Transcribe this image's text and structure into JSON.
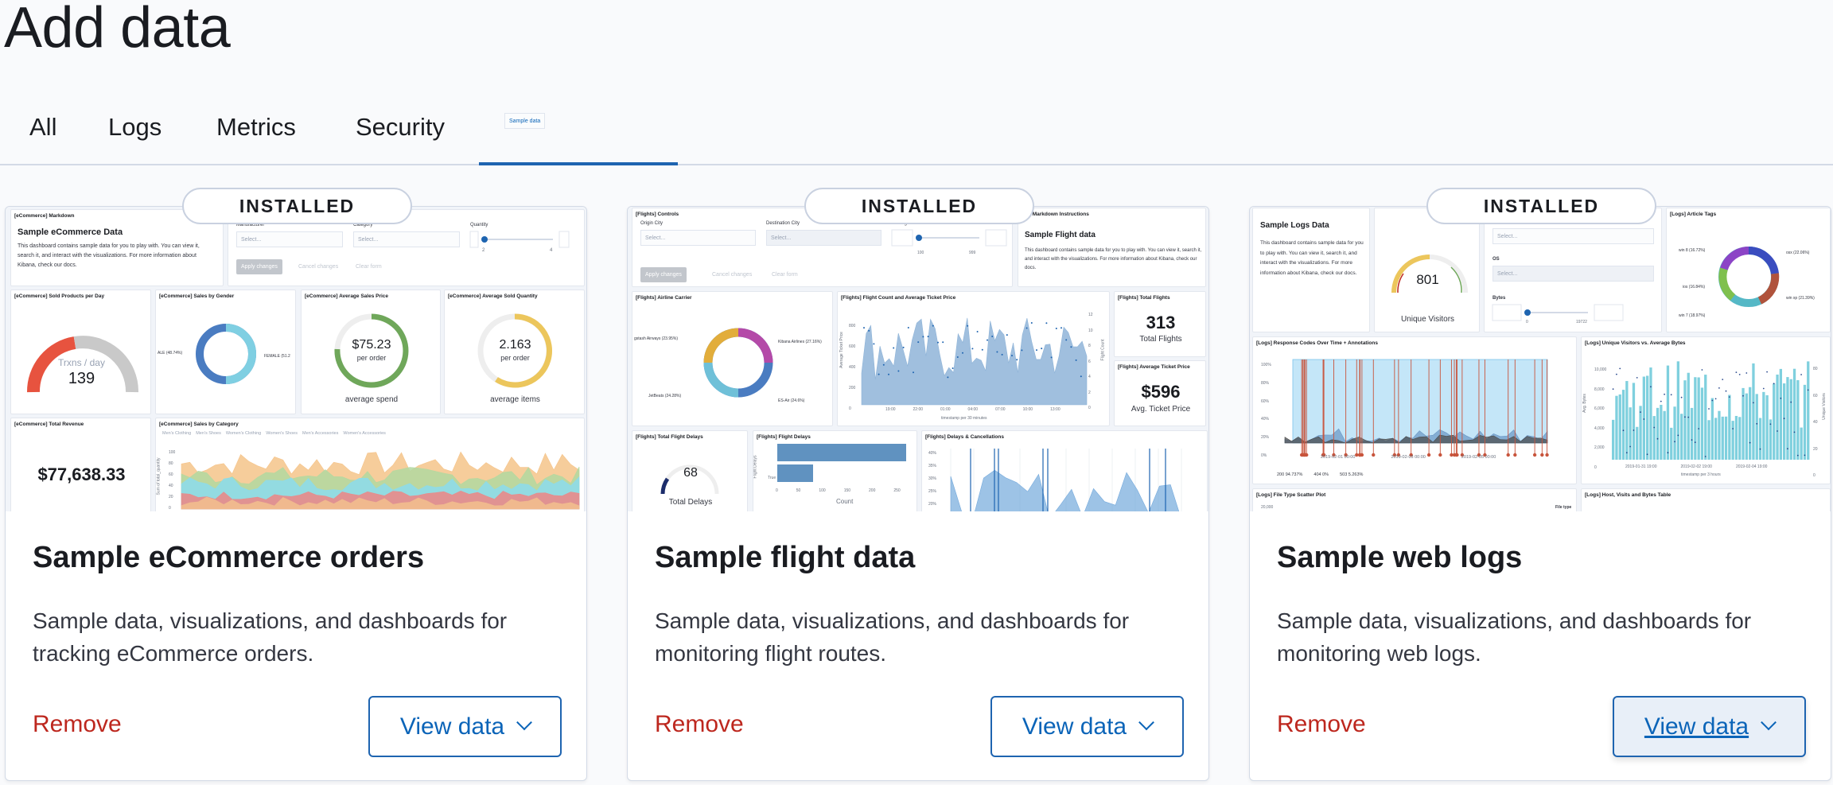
{
  "page": {
    "title": "Add data"
  },
  "tabs": [
    {
      "label": "All"
    },
    {
      "label": "Logs"
    },
    {
      "label": "Metrics"
    },
    {
      "label": "Security"
    },
    {
      "label": "Sample data",
      "selected": true
    }
  ],
  "colors": {
    "accent": "#0b64b8",
    "danger": "#bd271e",
    "text": "#1a1c21",
    "border": "#d3dae6"
  },
  "cards": [
    {
      "badge": "INSTALLED",
      "title": "Sample eCommerce orders",
      "description": "Sample data, visualizations, and dashboards for tracking eCommerce orders.",
      "remove_label": "Remove",
      "view_label": "View data",
      "thumb": {
        "markdown_title": "[eCommerce] Markdown",
        "heading": "Sample eCommerce Data",
        "body": "This dashboard contains sample data for you to play with. You can view it, search it, and interact with the visualizations. For more information about Kibana, check our docs.",
        "controls": {
          "labels": [
            "Manufacturer",
            "Category",
            "Quantity"
          ],
          "placeholder": "Select...",
          "slider_min": "2",
          "slider_max": "4",
          "apply": "Apply changes",
          "cancel": "Cancel changes",
          "clear": "Clear form"
        },
        "sold": {
          "title": "[eCommerce] Sold Products per Day",
          "label": "Trxns / day",
          "value": "139"
        },
        "gender": {
          "title": "[eCommerce] Sales by Gender",
          "left": "ALE (48.74%)",
          "right": "FEMALE (51.2"
        },
        "price": {
          "title": "[eCommerce] Average Sales Price",
          "value": "$75.23",
          "sub": "per order",
          "caption": "average spend"
        },
        "qty": {
          "title": "[eCommerce] Average Sold Quantity",
          "value": "2.163",
          "sub": "per order",
          "caption": "average items"
        },
        "revenue": {
          "title": "[eCommerce] Total Revenue",
          "value": "$77,638.33"
        },
        "category": {
          "title": "[eCommerce] Sales by Category",
          "legend": [
            "Men's Clothing",
            "Men's Shoes",
            "Women's Clothing",
            "Women's Shoes",
            "Men's Accessories",
            "Women's Accessories"
          ],
          "ylabel": "Sum of total_quantity",
          "yticks": [
            "100",
            "80",
            "60",
            "40",
            "20",
            "0"
          ]
        }
      }
    },
    {
      "badge": "INSTALLED",
      "title": "Sample flight data",
      "description": "Sample data, visualizations, and dashboards for monitoring flight routes.",
      "remove_label": "Remove",
      "view_label": "View data",
      "thumb": {
        "controls_title": "[Flights] Controls",
        "controls": {
          "labels": [
            "Origin City",
            "Destination City",
            "Average Ticket Price"
          ],
          "placeholder": "Select...",
          "slider_min": "100",
          "slider_max": "999",
          "apply": "Apply changes",
          "cancel": "Cancel changes",
          "clear": "Clear form"
        },
        "markdown_title": "hts] Markdown Instructions",
        "heading": "Sample Flight data",
        "body": "This dashboard contains sample data for you to play with. You can view it, search it, and interact with the visualizations. For more information about Kibana, check our docs.",
        "carrier": {
          "title": "[Flights] Airline Carrier",
          "labels": [
            "gstash Airways (23.95%)",
            "Kibana Airlines (27.16%)",
            "JetBeats (24.28%)",
            "ES-Air (24.6%)"
          ]
        },
        "count": {
          "title": "[Flights] Flight Count and Average Ticket Price",
          "yticks": [
            "800",
            "600",
            "400",
            "200",
            "0"
          ],
          "rticks": [
            "12",
            "10",
            "8",
            "6",
            "4",
            "2",
            "0"
          ],
          "xticks": [
            "19:00",
            "22:00",
            "01:00",
            "04:00",
            "07:00",
            "10:00",
            "13:00"
          ],
          "xlabel": "timestamp per 30 minutes",
          "ylabel": "Average Ticket Price",
          "rlabel": "Flight Count"
        },
        "total": {
          "title": "[Flights] Total Flights",
          "value": "313",
          "caption": "Total Flights"
        },
        "avg": {
          "title": "[Flights] Average Ticket Price",
          "value": "$596",
          "caption": "Avg. Ticket Price"
        },
        "delays": {
          "title": "[Flights] Total Flight Delays",
          "value": "68",
          "caption": "Total Delays"
        },
        "fdelays": {
          "title": "[Flights] Flight Delays",
          "ylabel": "Flight Delays",
          "cat": "True",
          "xticks": [
            "0",
            "50",
            "100",
            "150",
            "200",
            "250"
          ],
          "xlabel": "Count"
        },
        "cancel": {
          "title": "[Flights] Delays & Cancellations",
          "yticks": [
            "40%",
            "35%",
            "30%",
            "25%",
            "20%"
          ]
        }
      }
    },
    {
      "badge": "INSTALLED",
      "title": "Sample web logs",
      "description": "Sample data, visualizations, and dashboards for monitoring web logs.",
      "remove_label": "Remove",
      "view_label": "View data",
      "thumb": {
        "heading": "Sample Logs Data",
        "body": "This dashboard contains sample data for you to play with. You can view it, search it, and interact with the visualizations. For more information about Kibana, check our docs.",
        "gauge": {
          "value": "801",
          "caption": "Unique Visitors"
        },
        "controls": {
          "placeholder": "Select...",
          "os": "OS",
          "bytes": "Bytes",
          "slider_min": "0",
          "slider_max": "19722"
        },
        "tags": {
          "title": "[Logs] Article Tags",
          "labels": [
            "win 8 (16.72%)",
            "osx (22.06%)",
            "ios (16.84%)",
            "win xp (21.39%)",
            "win 7 (18.97%)"
          ]
        },
        "codes": {
          "title": "[Logs] Response Codes Over Time + Annotations",
          "yticks": [
            "100%",
            "80%",
            "60%",
            "40%",
            "20%",
            "0%"
          ],
          "xticks": [
            "2019-02-01 00:00",
            "2019-02-03 00:00",
            "2019-02-05 00:00"
          ],
          "legend": [
            "200 94.737%",
            "404 0%",
            "503 5.263%"
          ]
        },
        "visitors": {
          "title": "[Logs] Unique Visitors vs. Average Bytes",
          "yticks": [
            "10,000",
            "8,000",
            "6,000",
            "4,000",
            "2,000",
            "0"
          ],
          "rticks": [
            "80",
            "60",
            "40",
            "20",
            "0"
          ],
          "xticks": [
            "2019-01-31 19:00",
            "2019-02-02 19:00",
            "2019-02-04 19:00"
          ],
          "xlabel": "timestamp per 3 hours",
          "ylabel": "Avg. Bytes",
          "rlabel": "Unique Visitors"
        },
        "scatter": {
          "title": "[Logs] File Type Scatter Plot",
          "ytick": "20,000",
          "legend": "File type"
        },
        "table": {
          "title": "[Logs] Host, Visits and Bytes Table"
        }
      }
    }
  ]
}
